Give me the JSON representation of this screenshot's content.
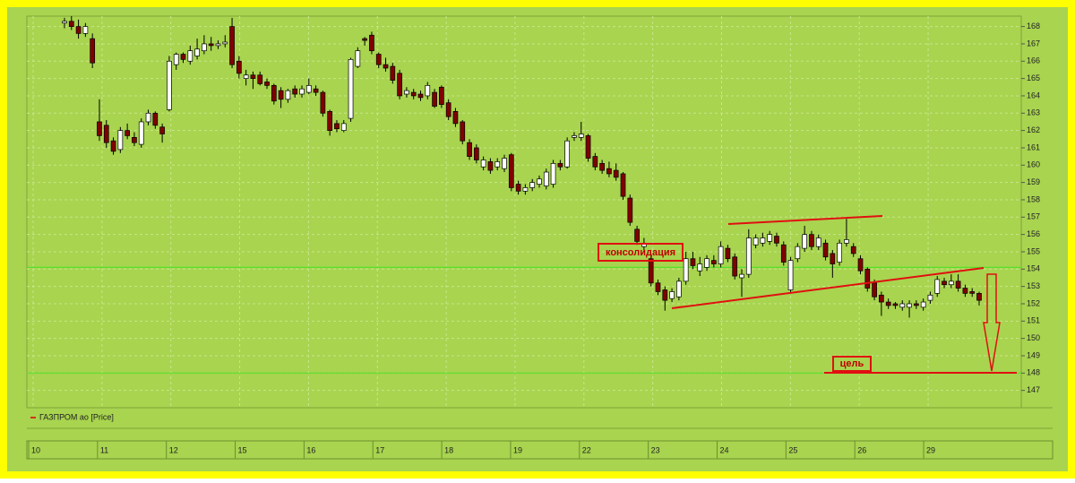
{
  "chart_data": {
    "type": "candlestick",
    "legend": "ГАЗПРОМ ао [Price]",
    "categories": [
      "10",
      "11",
      "12",
      "15",
      "16",
      "17",
      "18",
      "19",
      "22",
      "23",
      "24",
      "25",
      "26",
      "29"
    ],
    "ylim": [
      146,
      168.6
    ],
    "yticks": [
      147,
      148,
      149,
      150,
      151,
      152,
      153,
      154,
      155,
      156,
      157,
      158,
      159,
      160,
      161,
      162,
      163,
      164,
      165,
      166,
      167,
      168
    ],
    "grid": true,
    "up_color": "#ffffff",
    "down_color": "#800000",
    "hlines": [
      154.1,
      148
    ],
    "annotations": [
      "консолидация",
      "цель"
    ],
    "ohlc": [
      [
        168.2,
        168.5,
        167.9,
        168.3
      ],
      [
        168.3,
        168.6,
        167.8,
        168.0
      ],
      [
        168.0,
        168.4,
        167.3,
        167.6
      ],
      [
        167.6,
        168.2,
        167.4,
        168.0
      ],
      [
        167.3,
        167.6,
        165.6,
        165.9
      ],
      [
        162.5,
        163.8,
        161.4,
        161.7
      ],
      [
        162.3,
        162.6,
        161.0,
        161.3
      ],
      [
        161.4,
        161.6,
        160.6,
        160.8
      ],
      [
        160.9,
        162.2,
        160.7,
        162.0
      ],
      [
        162.0,
        162.4,
        161.5,
        161.7
      ],
      [
        161.6,
        161.9,
        161.1,
        161.3
      ],
      [
        161.2,
        162.7,
        161.0,
        162.5
      ],
      [
        162.5,
        163.2,
        162.3,
        163.0
      ],
      [
        163.0,
        163.1,
        162.1,
        162.3
      ],
      [
        162.2,
        162.4,
        161.3,
        161.8
      ],
      [
        163.2,
        166.3,
        163.1,
        166.0
      ],
      [
        165.8,
        166.5,
        165.5,
        166.4
      ],
      [
        166.4,
        166.5,
        165.9,
        166.1
      ],
      [
        166.0,
        166.9,
        165.8,
        166.6
      ],
      [
        166.3,
        167.3,
        166.1,
        166.7
      ],
      [
        166.6,
        167.5,
        166.4,
        167.0
      ],
      [
        167.0,
        167.4,
        166.6,
        166.9
      ],
      [
        166.9,
        167.2,
        166.7,
        167.0
      ],
      [
        167.0,
        167.5,
        166.8,
        167.1
      ],
      [
        168.0,
        168.5,
        165.6,
        165.8
      ],
      [
        166.0,
        166.3,
        165.0,
        165.3
      ],
      [
        165.0,
        165.5,
        164.6,
        165.2
      ],
      [
        165.2,
        165.4,
        164.4,
        165.0
      ],
      [
        165.2,
        165.4,
        164.6,
        164.7
      ],
      [
        164.8,
        165.0,
        164.4,
        164.6
      ],
      [
        164.6,
        164.7,
        163.5,
        163.7
      ],
      [
        164.3,
        164.5,
        163.3,
        163.8
      ],
      [
        163.8,
        164.4,
        163.6,
        164.3
      ],
      [
        164.4,
        164.6,
        163.9,
        164.1
      ],
      [
        164.1,
        164.6,
        163.9,
        164.4
      ],
      [
        164.2,
        165.0,
        164.1,
        164.6
      ],
      [
        164.4,
        164.6,
        164.0,
        164.2
      ],
      [
        164.2,
        164.3,
        162.8,
        163.0
      ],
      [
        163.1,
        163.2,
        161.7,
        162.0
      ],
      [
        162.4,
        162.6,
        161.9,
        162.1
      ],
      [
        162.0,
        162.6,
        161.9,
        162.4
      ],
      [
        162.7,
        166.2,
        162.5,
        166.1
      ],
      [
        165.7,
        166.8,
        165.6,
        166.6
      ],
      [
        167.3,
        167.4,
        166.9,
        167.2
      ],
      [
        167.5,
        167.7,
        166.4,
        166.6
      ],
      [
        166.4,
        166.5,
        165.6,
        165.8
      ],
      [
        165.8,
        166.2,
        165.4,
        165.6
      ],
      [
        165.7,
        165.9,
        164.7,
        164.9
      ],
      [
        165.3,
        165.5,
        163.8,
        164.0
      ],
      [
        164.1,
        164.5,
        163.9,
        164.3
      ],
      [
        164.2,
        164.4,
        163.8,
        164.0
      ],
      [
        164.1,
        164.3,
        163.7,
        163.9
      ],
      [
        164.0,
        164.8,
        163.8,
        164.6
      ],
      [
        164.2,
        164.4,
        163.3,
        163.4
      ],
      [
        164.5,
        164.6,
        163.3,
        163.5
      ],
      [
        163.6,
        163.8,
        162.6,
        162.8
      ],
      [
        163.1,
        163.3,
        162.2,
        162.4
      ],
      [
        162.5,
        162.6,
        161.2,
        161.4
      ],
      [
        161.3,
        161.5,
        160.3,
        160.5
      ],
      [
        161.0,
        161.2,
        160.1,
        160.3
      ],
      [
        159.9,
        160.5,
        159.7,
        160.3
      ],
      [
        160.2,
        160.4,
        159.5,
        159.7
      ],
      [
        159.9,
        160.4,
        159.7,
        160.2
      ],
      [
        159.8,
        160.6,
        159.6,
        160.4
      ],
      [
        160.6,
        160.7,
        158.5,
        158.7
      ],
      [
        158.9,
        159.1,
        158.3,
        158.5
      ],
      [
        158.5,
        158.9,
        158.3,
        158.7
      ],
      [
        158.7,
        159.2,
        158.5,
        159.0
      ],
      [
        158.9,
        159.4,
        158.7,
        159.2
      ],
      [
        158.8,
        159.8,
        158.6,
        159.6
      ],
      [
        158.9,
        160.3,
        158.7,
        160.1
      ],
      [
        160.1,
        160.3,
        159.7,
        159.9
      ],
      [
        159.9,
        161.6,
        159.8,
        161.4
      ],
      [
        161.6,
        161.9,
        161.4,
        161.7
      ],
      [
        161.6,
        162.5,
        161.4,
        161.8
      ],
      [
        161.7,
        161.8,
        160.2,
        160.4
      ],
      [
        160.5,
        160.7,
        159.7,
        159.9
      ],
      [
        160.1,
        160.3,
        159.5,
        159.7
      ],
      [
        159.8,
        160.2,
        159.3,
        159.5
      ],
      [
        159.7,
        160.1,
        159.1,
        159.3
      ],
      [
        159.5,
        159.6,
        158.0,
        158.2
      ],
      [
        158.1,
        158.3,
        156.5,
        156.7
      ],
      [
        156.3,
        156.5,
        155.4,
        155.6
      ],
      [
        155.3,
        155.8,
        155.1,
        155.5
      ],
      [
        154.6,
        154.8,
        153.0,
        153.2
      ],
      [
        153.2,
        153.4,
        152.5,
        152.7
      ],
      [
        152.8,
        153.0,
        151.6,
        152.2
      ],
      [
        152.3,
        152.9,
        152.1,
        152.7
      ],
      [
        152.4,
        153.5,
        152.2,
        153.3
      ],
      [
        153.3,
        155.0,
        153.1,
        154.6
      ],
      [
        154.6,
        155.0,
        154.0,
        154.2
      ],
      [
        153.9,
        154.7,
        153.6,
        154.3
      ],
      [
        154.1,
        154.8,
        153.9,
        154.6
      ],
      [
        154.5,
        154.8,
        154.1,
        154.3
      ],
      [
        154.3,
        155.6,
        154.1,
        155.3
      ],
      [
        155.2,
        155.4,
        154.4,
        154.6
      ],
      [
        154.7,
        154.9,
        153.4,
        153.6
      ],
      [
        153.5,
        154.0,
        152.4,
        153.7
      ],
      [
        153.7,
        156.3,
        153.5,
        155.8
      ],
      [
        155.4,
        156.0,
        155.2,
        155.8
      ],
      [
        155.5,
        156.1,
        155.3,
        155.8
      ],
      [
        155.6,
        156.2,
        155.4,
        156.0
      ],
      [
        155.9,
        156.1,
        155.3,
        155.5
      ],
      [
        155.4,
        155.6,
        154.2,
        154.4
      ],
      [
        152.8,
        154.7,
        152.6,
        154.5
      ],
      [
        154.6,
        155.5,
        154.4,
        155.3
      ],
      [
        155.2,
        156.5,
        155.0,
        156.0
      ],
      [
        156.0,
        156.2,
        155.1,
        155.3
      ],
      [
        155.3,
        156.0,
        155.1,
        155.8
      ],
      [
        155.5,
        155.7,
        154.5,
        154.7
      ],
      [
        154.9,
        155.1,
        153.5,
        154.3
      ],
      [
        154.4,
        155.7,
        154.2,
        155.5
      ],
      [
        155.5,
        156.9,
        155.3,
        155.7
      ],
      [
        155.3,
        155.5,
        154.7,
        154.9
      ],
      [
        154.6,
        154.8,
        153.7,
        153.9
      ],
      [
        154.0,
        154.1,
        152.7,
        152.9
      ],
      [
        153.2,
        153.4,
        152.2,
        152.4
      ],
      [
        152.5,
        152.7,
        151.3,
        152.1
      ],
      [
        152.1,
        152.3,
        151.7,
        151.9
      ],
      [
        152.0,
        152.1,
        151.7,
        151.9
      ],
      [
        151.8,
        152.2,
        151.6,
        152.0
      ],
      [
        151.8,
        152.2,
        151.2,
        152.0
      ],
      [
        152.0,
        152.2,
        151.7,
        151.9
      ],
      [
        151.8,
        152.3,
        151.6,
        152.1
      ],
      [
        152.2,
        152.7,
        152.0,
        152.5
      ],
      [
        152.6,
        153.6,
        152.4,
        153.4
      ],
      [
        153.3,
        153.5,
        152.9,
        153.1
      ],
      [
        153.1,
        153.7,
        152.9,
        153.3
      ],
      [
        153.3,
        153.7,
        152.7,
        152.9
      ],
      [
        152.9,
        153.1,
        152.4,
        152.6
      ],
      [
        152.7,
        152.9,
        152.4,
        152.6
      ],
      [
        152.6,
        152.7,
        151.9,
        152.2
      ]
    ]
  }
}
